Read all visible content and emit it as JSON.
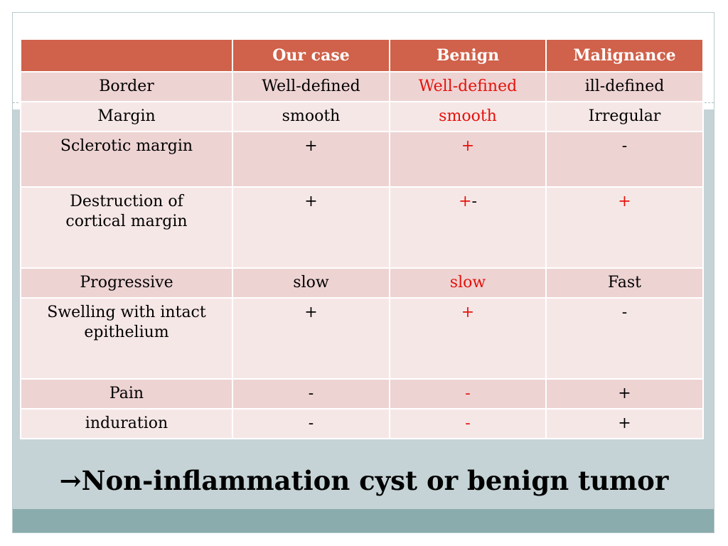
{
  "table": {
    "headers": [
      "",
      "Our case",
      "Benign",
      "Malignance"
    ],
    "rows": [
      {
        "label": "Border",
        "our_case": "Well-defined",
        "benign": "Well-defined",
        "malignance": "ill-defined"
      },
      {
        "label": "Margin",
        "our_case": "smooth",
        "benign": "smooth",
        "malignance": "Irregular"
      },
      {
        "label": "Sclerotic margin",
        "our_case": "+",
        "benign": "+",
        "malignance": "-"
      },
      {
        "label_line1": "Destruction of",
        "label_line2": "cortical margin",
        "our_case": "+",
        "benign_a": "+",
        "benign_b": "-",
        "malignance": "+"
      },
      {
        "label": "Progressive",
        "our_case": "slow",
        "benign": "slow",
        "malignance": "Fast"
      },
      {
        "label_line1": "Swelling with intact",
        "label_line2": "epithelium",
        "our_case": "+",
        "benign": "+",
        "malignance": "-"
      },
      {
        "label": "Pain",
        "our_case": "-",
        "benign": "-",
        "malignance": "+"
      },
      {
        "label": "induration",
        "our_case": "-",
        "benign": "-",
        "malignance": "+"
      }
    ]
  },
  "conclusion": "→Non-inflammation cyst or benign tumor",
  "colors": {
    "header_bg": "#d0614a",
    "row_odd_bg": "#eed3d3",
    "row_even_bg": "#f6e7e7",
    "highlight_text": "#e3120b",
    "band_mid": "#c5d3d6",
    "band_bottom": "#8aacad"
  }
}
